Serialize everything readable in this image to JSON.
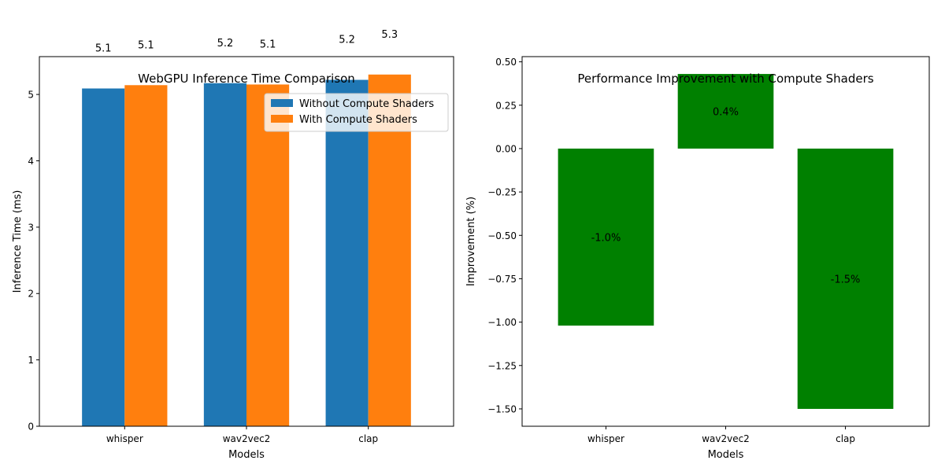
{
  "chart_data": [
    {
      "type": "bar",
      "title": "WebGPU Inference Time Comparison",
      "xlabel": "Models",
      "ylabel": "Inference Time (ms)",
      "categories": [
        "whisper",
        "wav2vec2",
        "clap"
      ],
      "series": [
        {
          "name": "Without Compute Shaders",
          "values": [
            5.09,
            5.17,
            5.22
          ],
          "color": "#1f77b4"
        },
        {
          "name": "With Compute Shaders",
          "values": [
            5.14,
            5.15,
            5.3
          ],
          "color": "#ff7f0e"
        }
      ],
      "value_labels": [
        [
          "5.1",
          "5.2",
          "5.2"
        ],
        [
          "5.1",
          "5.1",
          "5.3"
        ]
      ],
      "ylim": [
        0,
        5.57
      ],
      "yticks": [
        0,
        1,
        2,
        3,
        4,
        5
      ],
      "ytick_labels": [
        "0",
        "1",
        "2",
        "3",
        "4",
        "5"
      ],
      "legend_position": "upper-right",
      "grid": false
    },
    {
      "type": "bar",
      "title": "Performance Improvement with Compute Shaders",
      "xlabel": "Models",
      "ylabel": "Improvement (%)",
      "categories": [
        "whisper",
        "wav2vec2",
        "clap"
      ],
      "values": [
        -1.02,
        0.43,
        -1.5
      ],
      "value_labels": [
        "-1.0%",
        "0.4%",
        "-1.5%"
      ],
      "color": "#008000",
      "ylim": [
        -1.6,
        0.53
      ],
      "yticks": [
        0.5,
        0.25,
        0,
        -0.25,
        -0.5,
        -0.75,
        -1.0,
        -1.25,
        -1.5
      ],
      "ytick_labels": [
        "0.50",
        "0.25",
        "0.00",
        "−0.25",
        "−0.50",
        "−0.75",
        "−1.00",
        "−1.25",
        "−1.50"
      ],
      "grid": false
    }
  ]
}
